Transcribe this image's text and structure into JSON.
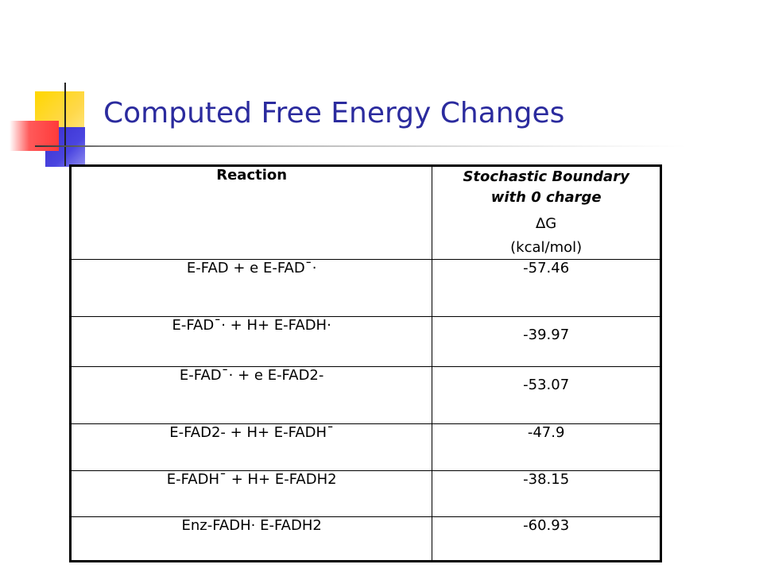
{
  "slide": {
    "title": "Computed Free Energy Changes"
  },
  "table": {
    "header": {
      "reaction": "Reaction",
      "value_line1": "Stochastic Boundary",
      "value_line2": "with 0 charge",
      "value_line3": "∆G",
      "value_line4": "(kcal/mol)"
    },
    "rows": [
      {
        "reaction": "E-FAD + e  E-FAD¯·",
        "value": "-57.46"
      },
      {
        "reaction": "E-FAD¯· + H+  E-FADH·",
        "value": "-39.97"
      },
      {
        "reaction": "E-FAD¯· + e  E-FAD2-",
        "value": "-53.07"
      },
      {
        "reaction": "E-FAD2- + H+  E-FADH¯",
        "value": "-47.9"
      },
      {
        "reaction": "E-FADH¯ + H+  E-FADH2",
        "value": "-38.15"
      },
      {
        "reaction": "Enz-FADH·  E-FADH2",
        "value": "-60.93"
      }
    ]
  },
  "decoration": {
    "colors": {
      "yellow": "#ffd700",
      "blue": "#3a2fcf",
      "red": "#ff3a3a",
      "title": "#2b2b9e"
    }
  }
}
